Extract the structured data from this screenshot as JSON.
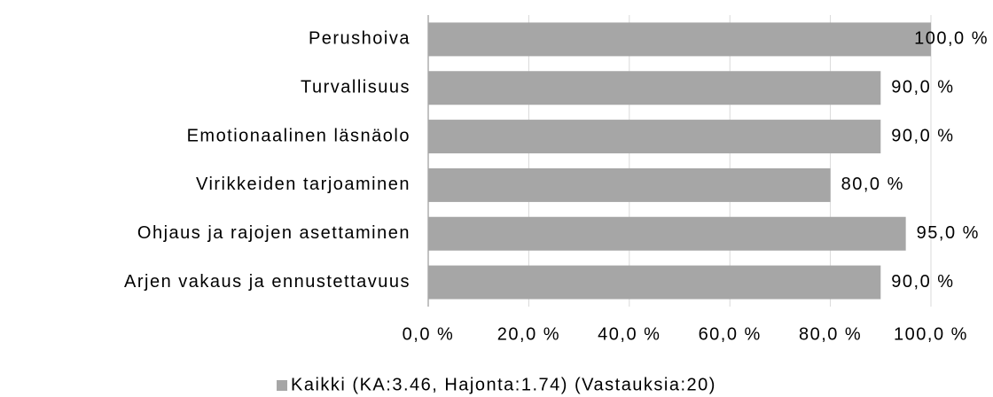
{
  "chart_data": {
    "type": "bar",
    "orientation": "horizontal",
    "categories": [
      "Perushoiva",
      "Turvallisuus",
      "Emotionaalinen läsnäolo",
      "Virikkeiden tarjoaminen",
      "Ohjaus ja rajojen asettaminen",
      "Arjen vakaus ja ennustettavuus"
    ],
    "series": [
      {
        "name": "Kaikki (KA:3.46, Hajonta:1.74) (Vastauksia:20)",
        "color": "#a6a6a6",
        "values": [
          100,
          90,
          90,
          80,
          95,
          90
        ],
        "value_labels": [
          "100,0 %",
          "90,0 %",
          "90,0 %",
          "80,0 %",
          "95,0 %",
          "90,0 %"
        ]
      }
    ],
    "xlim": [
      0,
      100
    ],
    "xticks": [
      {
        "value": 0,
        "label": "0,0 %"
      },
      {
        "value": 20,
        "label": "20,0 %"
      },
      {
        "value": 40,
        "label": "40,0 %"
      },
      {
        "value": 60,
        "label": "60,0 %"
      },
      {
        "value": 80,
        "label": "80,0 %"
      },
      {
        "value": 100,
        "label": "100,0 %"
      }
    ],
    "grid": true,
    "legend": "bottom"
  }
}
